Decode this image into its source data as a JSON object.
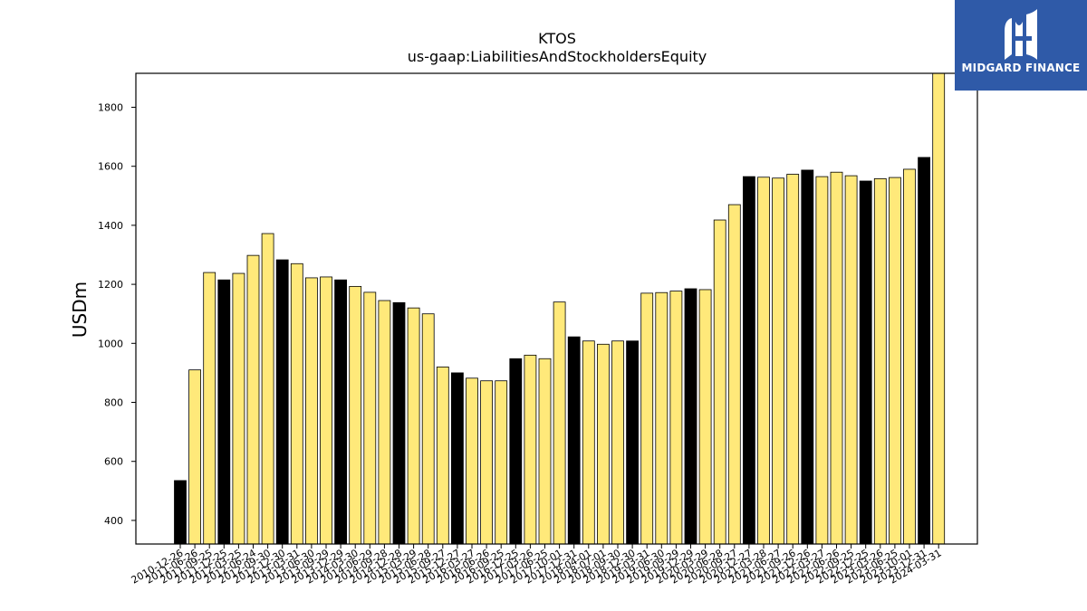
{
  "logo": {
    "text": "MIDGARD FINANCE",
    "color": "#2f5aa8"
  },
  "chart_data": {
    "type": "bar",
    "title": "KTOS",
    "subtitle": "us-gaap:LiabilitiesAndStockholdersEquity",
    "ylabel": "USDm",
    "xlabel": "",
    "ylim": [
      320,
      1915
    ],
    "yticks": [
      400,
      600,
      800,
      1000,
      1200,
      1400,
      1600,
      1800
    ],
    "grid": false,
    "colors": {
      "annual": "#000000",
      "quarterly": "#ffe97a",
      "edge": "#000000"
    },
    "categories": [
      "2010-12-26",
      "2011-06-26",
      "2011-09-25",
      "2011-12-25",
      "2012-03-25",
      "2012-06-24",
      "2012-09-30",
      "2012-12-30",
      "2013-03-31",
      "2013-06-30",
      "2013-09-29",
      "2013-12-29",
      "2014-03-30",
      "2014-06-29",
      "2014-09-28",
      "2014-12-28",
      "2015-03-29",
      "2015-06-28",
      "2015-09-27",
      "2015-12-27",
      "2016-03-27",
      "2016-06-26",
      "2016-09-25",
      "2016-12-25",
      "2017-03-26",
      "2017-06-25",
      "2017-10-01",
      "2017-12-31",
      "2018-04-01",
      "2018-07-01",
      "2018-09-30",
      "2018-12-30",
      "2019-03-31",
      "2019-06-30",
      "2019-09-29",
      "2019-12-29",
      "2020-03-29",
      "2020-06-28",
      "2020-09-27",
      "2020-12-27",
      "2021-03-28",
      "2021-06-27",
      "2021-09-26",
      "2021-12-26",
      "2022-03-27",
      "2022-06-26",
      "2022-09-25",
      "2022-12-25",
      "2023-03-26",
      "2023-06-25",
      "2023-10-01",
      "2023-12-31",
      "2024-03-31"
    ],
    "values": [
      535,
      910,
      1240,
      1215,
      1237,
      1298,
      1372,
      1283,
      1270,
      1222,
      1225,
      1215,
      1193,
      1173,
      1145,
      1138,
      1120,
      1100,
      920,
      900,
      882,
      873,
      873,
      948,
      960,
      948,
      1140,
      1022,
      1008,
      997,
      1008,
      1008,
      1170,
      1172,
      1177,
      1185,
      1182,
      1418,
      1470,
      1565,
      1563,
      1560,
      1573,
      1587,
      1565,
      1580,
      1568,
      1550,
      1558,
      1562,
      1590,
      1630,
      1915
    ],
    "annual": [
      true,
      false,
      false,
      true,
      false,
      false,
      false,
      true,
      false,
      false,
      false,
      true,
      false,
      false,
      false,
      true,
      false,
      false,
      false,
      true,
      false,
      false,
      false,
      true,
      false,
      false,
      false,
      true,
      false,
      false,
      false,
      true,
      false,
      false,
      false,
      true,
      false,
      false,
      false,
      true,
      false,
      false,
      false,
      true,
      false,
      false,
      false,
      true,
      false,
      false,
      false,
      true,
      false
    ]
  }
}
